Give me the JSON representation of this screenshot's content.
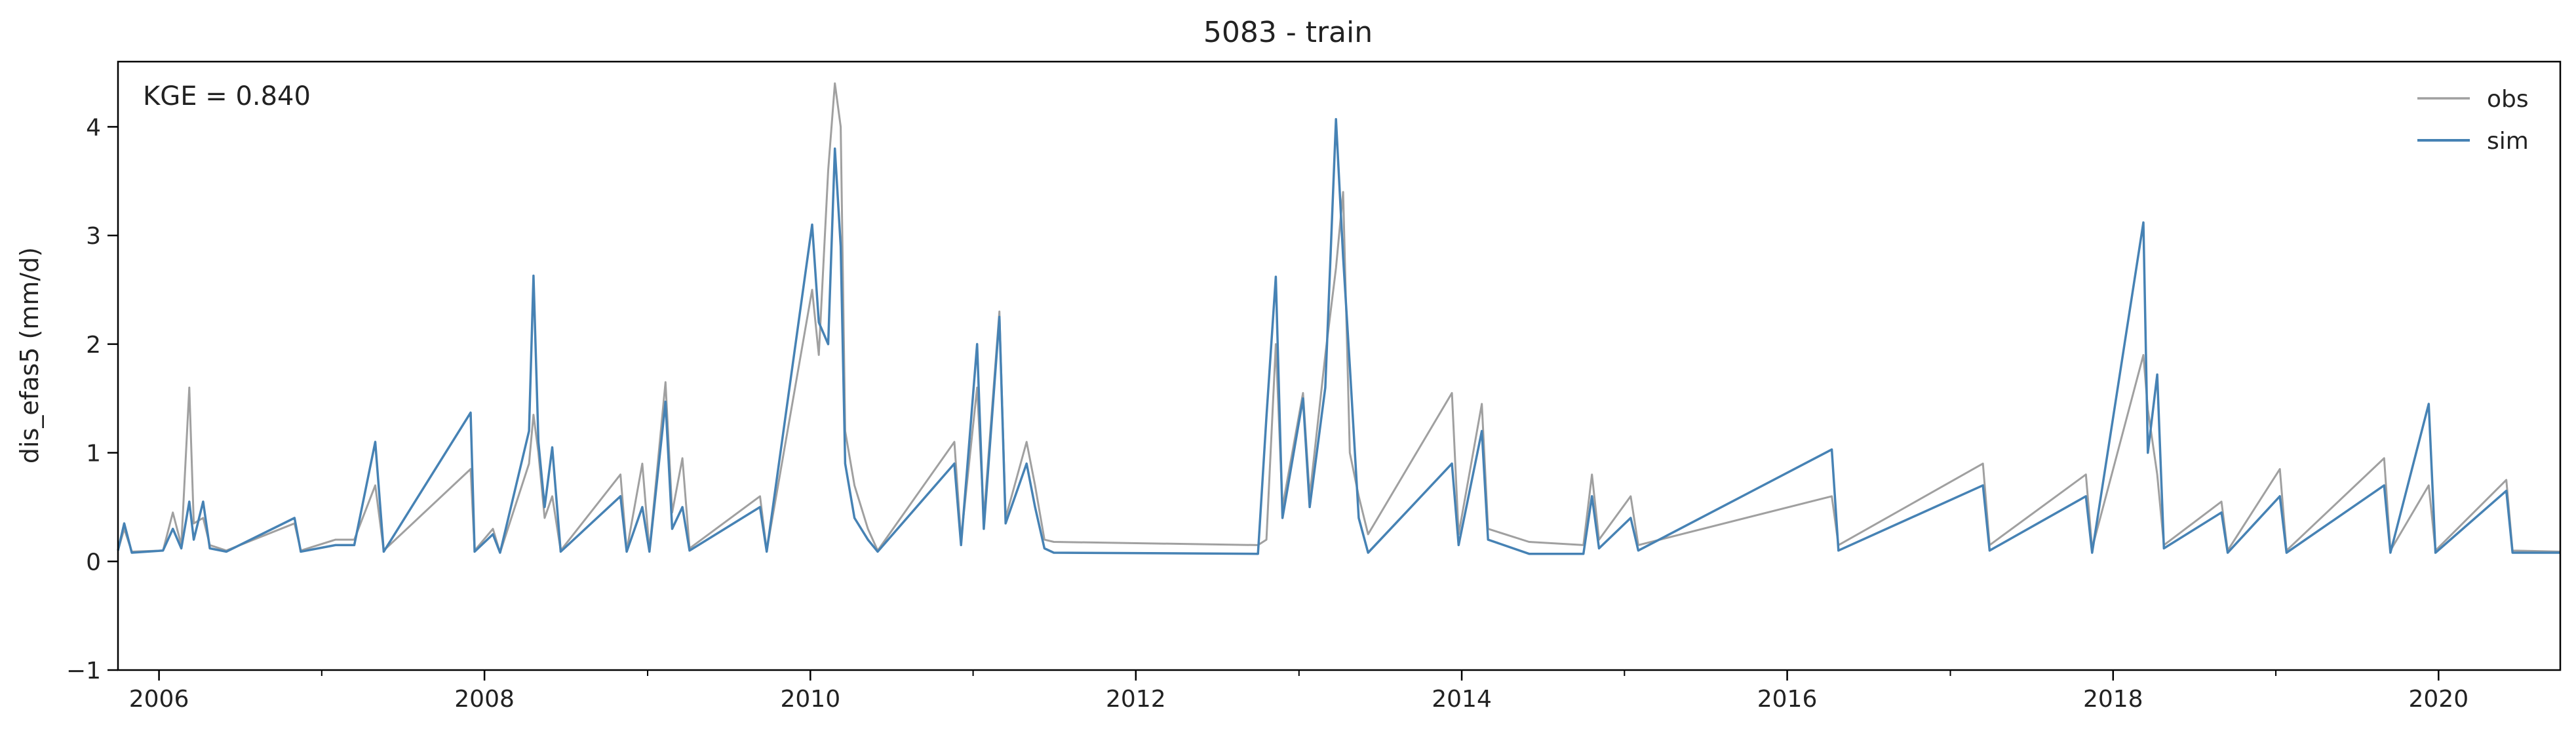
{
  "chart_data": {
    "type": "line",
    "title": "5083 - train",
    "xlabel": "",
    "ylabel": "dis_efas5 (mm/d)",
    "annotation": "KGE = 0.840",
    "xlim": [
      "2005-10-01",
      "2020-09-30"
    ],
    "ylim": [
      -1,
      4.6
    ],
    "x_ticks": [
      "2006",
      "2008",
      "2010",
      "2012",
      "2014",
      "2016",
      "2018",
      "2020"
    ],
    "y_ticks": [
      "−1",
      "0",
      "1",
      "2",
      "3",
      "4"
    ],
    "grid": false,
    "legend_position": "top-right",
    "series": [
      {
        "name": "obs",
        "color": "#a0a0a0",
        "points": [
          [
            "2005-10-01",
            0.1
          ],
          [
            "2005-10-15",
            0.3
          ],
          [
            "2005-11-01",
            0.09
          ],
          [
            "2006-01-10",
            0.1
          ],
          [
            "2006-02-01",
            0.45
          ],
          [
            "2006-02-20",
            0.15
          ],
          [
            "2006-03-10",
            1.6
          ],
          [
            "2006-03-20",
            0.35
          ],
          [
            "2006-04-10",
            0.4
          ],
          [
            "2006-04-25",
            0.15
          ],
          [
            "2006-06-01",
            0.1
          ],
          [
            "2006-11-01",
            0.35
          ],
          [
            "2006-11-15",
            0.1
          ],
          [
            "2007-02-01",
            0.2
          ],
          [
            "2007-03-15",
            0.2
          ],
          [
            "2007-05-01",
            0.7
          ],
          [
            "2007-05-20",
            0.1
          ],
          [
            "2007-12-01",
            0.85
          ],
          [
            "2007-12-10",
            0.1
          ],
          [
            "2008-01-20",
            0.3
          ],
          [
            "2008-02-05",
            0.08
          ],
          [
            "2008-04-10",
            0.9
          ],
          [
            "2008-04-20",
            1.35
          ],
          [
            "2008-05-01",
            1.0
          ],
          [
            "2008-05-15",
            0.4
          ],
          [
            "2008-06-01",
            0.6
          ],
          [
            "2008-06-20",
            0.1
          ],
          [
            "2008-11-01",
            0.8
          ],
          [
            "2008-11-15",
            0.1
          ],
          [
            "2008-12-20",
            0.9
          ],
          [
            "2009-01-05",
            0.1
          ],
          [
            "2009-02-10",
            1.65
          ],
          [
            "2009-02-25",
            0.45
          ],
          [
            "2009-03-20",
            0.95
          ],
          [
            "2009-04-05",
            0.12
          ],
          [
            "2009-09-10",
            0.6
          ],
          [
            "2009-09-25",
            0.1
          ],
          [
            "2010-01-05",
            2.5
          ],
          [
            "2010-01-20",
            1.9
          ],
          [
            "2010-02-10",
            3.6
          ],
          [
            "2010-02-25",
            4.4
          ],
          [
            "2010-03-10",
            4.0
          ],
          [
            "2010-03-20",
            1.2
          ],
          [
            "2010-04-10",
            0.7
          ],
          [
            "2010-05-10",
            0.3
          ],
          [
            "2010-06-01",
            0.1
          ],
          [
            "2010-11-20",
            1.1
          ],
          [
            "2010-12-05",
            0.2
          ],
          [
            "2011-01-10",
            1.6
          ],
          [
            "2011-01-25",
            0.4
          ],
          [
            "2011-03-01",
            2.3
          ],
          [
            "2011-03-15",
            0.4
          ],
          [
            "2011-05-01",
            1.1
          ],
          [
            "2011-05-20",
            0.7
          ],
          [
            "2011-06-10",
            0.2
          ],
          [
            "2011-07-01",
            0.18
          ],
          [
            "2012-10-01",
            0.15
          ],
          [
            "2012-10-20",
            0.2
          ],
          [
            "2012-11-10",
            2.0
          ],
          [
            "2012-11-25",
            0.5
          ],
          [
            "2013-01-10",
            1.55
          ],
          [
            "2013-01-25",
            0.6
          ],
          [
            "2013-03-01",
            1.9
          ],
          [
            "2013-03-25",
            2.7
          ],
          [
            "2013-04-10",
            3.4
          ],
          [
            "2013-04-25",
            1.0
          ],
          [
            "2013-05-15",
            0.6
          ],
          [
            "2013-06-05",
            0.25
          ],
          [
            "2013-12-10",
            1.55
          ],
          [
            "2013-12-25",
            0.25
          ],
          [
            "2014-02-15",
            1.45
          ],
          [
            "2014-03-01",
            0.3
          ],
          [
            "2014-06-01",
            0.18
          ],
          [
            "2014-10-01",
            0.15
          ],
          [
            "2014-10-20",
            0.8
          ],
          [
            "2014-11-05",
            0.2
          ],
          [
            "2015-01-15",
            0.6
          ],
          [
            "2015-02-01",
            0.15
          ],
          [
            "2016-04-10",
            0.6
          ],
          [
            "2016-04-25",
            0.15
          ],
          [
            "2017-03-15",
            0.9
          ],
          [
            "2017-03-30",
            0.15
          ],
          [
            "2017-11-01",
            0.8
          ],
          [
            "2017-11-15",
            0.12
          ],
          [
            "2018-03-10",
            1.9
          ],
          [
            "2018-03-20",
            1.4
          ],
          [
            "2018-04-10",
            0.8
          ],
          [
            "2018-04-25",
            0.15
          ],
          [
            "2018-09-01",
            0.55
          ],
          [
            "2018-09-15",
            0.1
          ],
          [
            "2019-01-10",
            0.85
          ],
          [
            "2019-01-25",
            0.1
          ],
          [
            "2019-09-01",
            0.95
          ],
          [
            "2019-09-15",
            0.1
          ],
          [
            "2019-12-10",
            0.7
          ],
          [
            "2019-12-25",
            0.1
          ],
          [
            "2020-06-01",
            0.75
          ],
          [
            "2020-06-15",
            0.1
          ],
          [
            "2020-09-30",
            0.09
          ]
        ]
      },
      {
        "name": "sim",
        "color": "#4682b4",
        "points": [
          [
            "2005-10-01",
            0.1
          ],
          [
            "2005-10-15",
            0.35
          ],
          [
            "2005-11-01",
            0.08
          ],
          [
            "2006-01-10",
            0.1
          ],
          [
            "2006-02-01",
            0.3
          ],
          [
            "2006-02-20",
            0.12
          ],
          [
            "2006-03-10",
            0.55
          ],
          [
            "2006-03-20",
            0.2
          ],
          [
            "2006-04-10",
            0.55
          ],
          [
            "2006-04-25",
            0.12
          ],
          [
            "2006-06-01",
            0.09
          ],
          [
            "2006-11-01",
            0.4
          ],
          [
            "2006-11-15",
            0.09
          ],
          [
            "2007-02-01",
            0.15
          ],
          [
            "2007-03-15",
            0.15
          ],
          [
            "2007-05-01",
            1.1
          ],
          [
            "2007-05-20",
            0.09
          ],
          [
            "2007-12-01",
            1.37
          ],
          [
            "2007-12-10",
            0.09
          ],
          [
            "2008-01-20",
            0.25
          ],
          [
            "2008-02-05",
            0.08
          ],
          [
            "2008-04-10",
            1.2
          ],
          [
            "2008-04-20",
            2.63
          ],
          [
            "2008-05-01",
            1.1
          ],
          [
            "2008-05-15",
            0.5
          ],
          [
            "2008-06-01",
            1.05
          ],
          [
            "2008-06-20",
            0.09
          ],
          [
            "2008-11-01",
            0.6
          ],
          [
            "2008-11-15",
            0.09
          ],
          [
            "2008-12-20",
            0.5
          ],
          [
            "2009-01-05",
            0.09
          ],
          [
            "2009-02-10",
            1.47
          ],
          [
            "2009-02-25",
            0.3
          ],
          [
            "2009-03-20",
            0.5
          ],
          [
            "2009-04-05",
            0.1
          ],
          [
            "2009-09-10",
            0.5
          ],
          [
            "2009-09-25",
            0.09
          ],
          [
            "2010-01-05",
            3.1
          ],
          [
            "2010-01-20",
            2.2
          ],
          [
            "2010-02-10",
            2.0
          ],
          [
            "2010-02-25",
            3.8
          ],
          [
            "2010-03-10",
            2.9
          ],
          [
            "2010-03-20",
            0.9
          ],
          [
            "2010-04-10",
            0.4
          ],
          [
            "2010-05-10",
            0.2
          ],
          [
            "2010-06-01",
            0.09
          ],
          [
            "2010-11-20",
            0.9
          ],
          [
            "2010-12-05",
            0.15
          ],
          [
            "2011-01-10",
            2.0
          ],
          [
            "2011-01-25",
            0.3
          ],
          [
            "2011-03-01",
            2.25
          ],
          [
            "2011-03-15",
            0.35
          ],
          [
            "2011-05-01",
            0.9
          ],
          [
            "2011-05-20",
            0.5
          ],
          [
            "2011-06-10",
            0.12
          ],
          [
            "2011-07-01",
            0.08
          ],
          [
            "2012-10-01",
            0.07
          ],
          [
            "2012-10-20",
            1.33
          ],
          [
            "2012-11-10",
            2.62
          ],
          [
            "2012-11-25",
            0.4
          ],
          [
            "2013-01-10",
            1.5
          ],
          [
            "2013-01-25",
            0.5
          ],
          [
            "2013-03-01",
            1.6
          ],
          [
            "2013-03-25",
            4.07
          ],
          [
            "2013-04-10",
            2.8
          ],
          [
            "2013-04-25",
            1.8
          ],
          [
            "2013-05-15",
            0.4
          ],
          [
            "2013-06-05",
            0.08
          ],
          [
            "2013-12-10",
            0.9
          ],
          [
            "2013-12-25",
            0.15
          ],
          [
            "2014-02-15",
            1.2
          ],
          [
            "2014-03-01",
            0.2
          ],
          [
            "2014-06-01",
            0.07
          ],
          [
            "2014-10-01",
            0.07
          ],
          [
            "2014-10-20",
            0.6
          ],
          [
            "2014-11-05",
            0.12
          ],
          [
            "2015-01-15",
            0.4
          ],
          [
            "2015-02-01",
            0.1
          ],
          [
            "2016-04-10",
            1.03
          ],
          [
            "2016-04-25",
            0.1
          ],
          [
            "2017-03-15",
            0.7
          ],
          [
            "2017-03-30",
            0.1
          ],
          [
            "2017-11-01",
            0.6
          ],
          [
            "2017-11-15",
            0.08
          ],
          [
            "2018-03-10",
            3.12
          ],
          [
            "2018-03-20",
            1.0
          ],
          [
            "2018-04-10",
            1.72
          ],
          [
            "2018-04-25",
            0.12
          ],
          [
            "2018-09-01",
            0.45
          ],
          [
            "2018-09-15",
            0.08
          ],
          [
            "2019-01-10",
            0.6
          ],
          [
            "2019-01-25",
            0.08
          ],
          [
            "2019-09-01",
            0.7
          ],
          [
            "2019-09-15",
            0.08
          ],
          [
            "2019-12-10",
            1.45
          ],
          [
            "2019-12-25",
            0.08
          ],
          [
            "2020-06-01",
            0.65
          ],
          [
            "2020-06-15",
            0.08
          ],
          [
            "2020-09-30",
            0.08
          ]
        ]
      }
    ]
  }
}
